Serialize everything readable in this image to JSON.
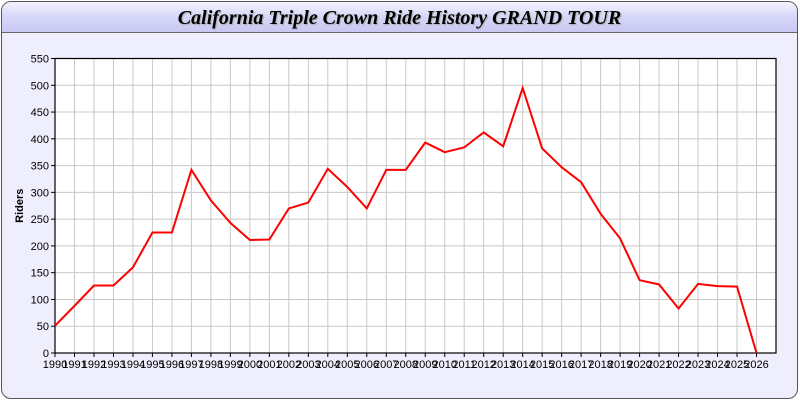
{
  "title": "California Triple Crown Ride History GRAND TOUR",
  "chart_data": {
    "type": "line",
    "title": "California Triple Crown Ride History GRAND TOUR",
    "xlabel": "",
    "ylabel": "Riders",
    "xlim": [
      1990,
      2027
    ],
    "ylim": [
      0,
      550
    ],
    "ytick_step": 50,
    "grid": true,
    "line_color": "#ff0000",
    "x": [
      1990,
      1991,
      1992,
      1993,
      1994,
      1995,
      1996,
      1997,
      1998,
      1999,
      2000,
      2001,
      2002,
      2003,
      2004,
      2005,
      2006,
      2007,
      2008,
      2009,
      2010,
      2011,
      2012,
      2013,
      2014,
      2015,
      2016,
      2017,
      2018,
      2019,
      2020,
      2021,
      2022,
      2023,
      2024,
      2025,
      2026
    ],
    "y": [
      51,
      88,
      126,
      126,
      160,
      225,
      225,
      342,
      285,
      243,
      211,
      212,
      270,
      281,
      344,
      310,
      270,
      342,
      342,
      393,
      375,
      384,
      412,
      386,
      495,
      382,
      347,
      319,
      260,
      214,
      136,
      128,
      83,
      129,
      125,
      124,
      0
    ]
  }
}
